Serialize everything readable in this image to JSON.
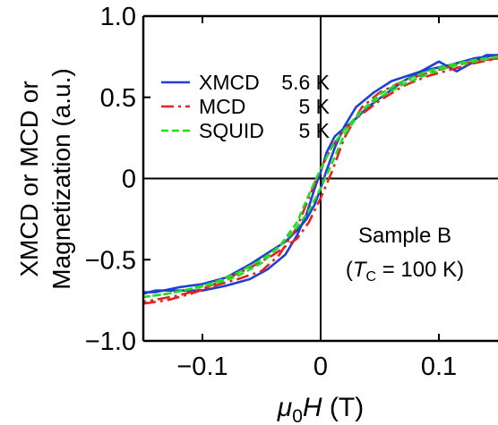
{
  "chart_data": {
    "type": "line",
    "title": "",
    "xlabel_symbol": "μ",
    "xlabel_sub": "0",
    "xlabel_var": "H",
    "xlabel_unit": " (T)",
    "ylabel_line1": "XMCD or MCD or",
    "ylabel_line2": "Magnetization (a.u.)",
    "xlim": [
      -0.15,
      0.15
    ],
    "ylim": [
      -1.0,
      1.0
    ],
    "xticks": [
      -0.1,
      0,
      0.1
    ],
    "xtick_labels": [
      "−0.1",
      "0",
      "0.1"
    ],
    "yticks": [
      -1.0,
      -0.5,
      0,
      0.5,
      1.0
    ],
    "ytick_labels": [
      "−1.0",
      "−0.5",
      "0",
      "0.5",
      "1.0"
    ],
    "legend_position": "upper-left",
    "annotation": {
      "line1": "Sample B",
      "line2_open": "(",
      "line2_T": "T",
      "line2_sub": "C",
      "line2_rest": " = 100 K)"
    },
    "series": [
      {
        "name": "XMCD",
        "temp": "5.6 K",
        "color": "#1f3fd6",
        "dash": "solid",
        "branches": [
          [
            [
              -0.15,
              -0.71
            ],
            [
              -0.14,
              -0.69
            ],
            [
              -0.12,
              -0.69
            ],
            [
              -0.1,
              -0.69
            ],
            [
              -0.08,
              -0.66
            ],
            [
              -0.06,
              -0.62
            ],
            [
              -0.045,
              -0.56
            ],
            [
              -0.03,
              -0.47
            ],
            [
              -0.02,
              -0.35
            ],
            [
              -0.012,
              -0.22
            ],
            [
              -0.005,
              -0.06
            ],
            [
              0.0,
              0.04
            ],
            [
              0.005,
              0.16
            ],
            [
              0.012,
              0.26
            ],
            [
              0.02,
              0.31
            ],
            [
              0.03,
              0.37
            ],
            [
              0.04,
              0.44
            ],
            [
              0.055,
              0.52
            ],
            [
              0.07,
              0.6
            ],
            [
              0.085,
              0.66
            ],
            [
              0.1,
              0.72
            ],
            [
              0.115,
              0.66
            ],
            [
              0.13,
              0.72
            ],
            [
              0.14,
              0.76
            ],
            [
              0.15,
              0.76
            ]
          ],
          [
            [
              0.15,
              0.76
            ],
            [
              0.13,
              0.74
            ],
            [
              0.11,
              0.7
            ],
            [
              0.085,
              0.66
            ],
            [
              0.06,
              0.6
            ],
            [
              0.045,
              0.53
            ],
            [
              0.03,
              0.44
            ],
            [
              0.02,
              0.32
            ],
            [
              0.012,
              0.19
            ],
            [
              0.005,
              0.05
            ],
            [
              0.0,
              -0.06
            ],
            [
              -0.005,
              -0.16
            ],
            [
              -0.012,
              -0.25
            ],
            [
              -0.02,
              -0.32
            ],
            [
              -0.03,
              -0.39
            ],
            [
              -0.045,
              -0.46
            ],
            [
              -0.06,
              -0.53
            ],
            [
              -0.08,
              -0.61
            ],
            [
              -0.1,
              -0.65
            ],
            [
              -0.12,
              -0.67
            ],
            [
              -0.14,
              -0.7
            ],
            [
              -0.15,
              -0.7
            ]
          ]
        ]
      },
      {
        "name": "MCD",
        "temp": "5 K",
        "color": "#e52222",
        "dash": "dashdot",
        "branches": [
          [
            [
              -0.15,
              -0.77
            ],
            [
              -0.13,
              -0.75
            ],
            [
              -0.11,
              -0.71
            ],
            [
              -0.09,
              -0.66
            ],
            [
              -0.07,
              -0.62
            ],
            [
              -0.05,
              -0.57
            ],
            [
              -0.035,
              -0.47
            ],
            [
              -0.02,
              -0.3
            ],
            [
              -0.01,
              -0.12
            ],
            [
              0.0,
              0.06
            ],
            [
              0.01,
              0.2
            ],
            [
              0.02,
              0.3
            ],
            [
              0.03,
              0.37
            ],
            [
              0.05,
              0.48
            ],
            [
              0.07,
              0.57
            ],
            [
              0.09,
              0.63
            ],
            [
              0.11,
              0.67
            ],
            [
              0.13,
              0.71
            ],
            [
              0.15,
              0.74
            ]
          ],
          [
            [
              0.15,
              0.74
            ],
            [
              0.13,
              0.72
            ],
            [
              0.11,
              0.69
            ],
            [
              0.09,
              0.65
            ],
            [
              0.07,
              0.6
            ],
            [
              0.05,
              0.53
            ],
            [
              0.035,
              0.44
            ],
            [
              0.02,
              0.25
            ],
            [
              0.01,
              0.05
            ],
            [
              0.0,
              -0.12
            ],
            [
              -0.01,
              -0.27
            ],
            [
              -0.02,
              -0.37
            ],
            [
              -0.04,
              -0.47
            ],
            [
              -0.06,
              -0.55
            ],
            [
              -0.08,
              -0.62
            ],
            [
              -0.1,
              -0.68
            ],
            [
              -0.12,
              -0.72
            ],
            [
              -0.15,
              -0.76
            ]
          ]
        ]
      },
      {
        "name": "SQUID",
        "temp": "5 K",
        "color": "#22dd22",
        "dash": "dashed",
        "branches": [
          [
            [
              -0.15,
              -0.73
            ],
            [
              -0.13,
              -0.71
            ],
            [
              -0.11,
              -0.68
            ],
            [
              -0.09,
              -0.65
            ],
            [
              -0.07,
              -0.6
            ],
            [
              -0.05,
              -0.52
            ],
            [
              -0.035,
              -0.42
            ],
            [
              -0.02,
              -0.27
            ],
            [
              -0.01,
              -0.1
            ],
            [
              0.0,
              0.06
            ],
            [
              0.01,
              0.2
            ],
            [
              0.02,
              0.3
            ],
            [
              0.035,
              0.42
            ],
            [
              0.05,
              0.5
            ],
            [
              0.07,
              0.58
            ],
            [
              0.09,
              0.64
            ],
            [
              0.11,
              0.69
            ],
            [
              0.13,
              0.72
            ],
            [
              0.15,
              0.75
            ]
          ],
          [
            [
              0.15,
              0.75
            ],
            [
              0.13,
              0.73
            ],
            [
              0.11,
              0.7
            ],
            [
              0.09,
              0.66
            ],
            [
              0.07,
              0.6
            ],
            [
              0.05,
              0.52
            ],
            [
              0.035,
              0.42
            ],
            [
              0.02,
              0.27
            ],
            [
              0.01,
              0.1
            ],
            [
              0.0,
              -0.06
            ],
            [
              -0.01,
              -0.2
            ],
            [
              -0.02,
              -0.3
            ],
            [
              -0.035,
              -0.42
            ],
            [
              -0.05,
              -0.5
            ],
            [
              -0.07,
              -0.58
            ],
            [
              -0.09,
              -0.64
            ],
            [
              -0.11,
              -0.68
            ],
            [
              -0.13,
              -0.71
            ],
            [
              -0.15,
              -0.73
            ]
          ]
        ]
      }
    ]
  }
}
